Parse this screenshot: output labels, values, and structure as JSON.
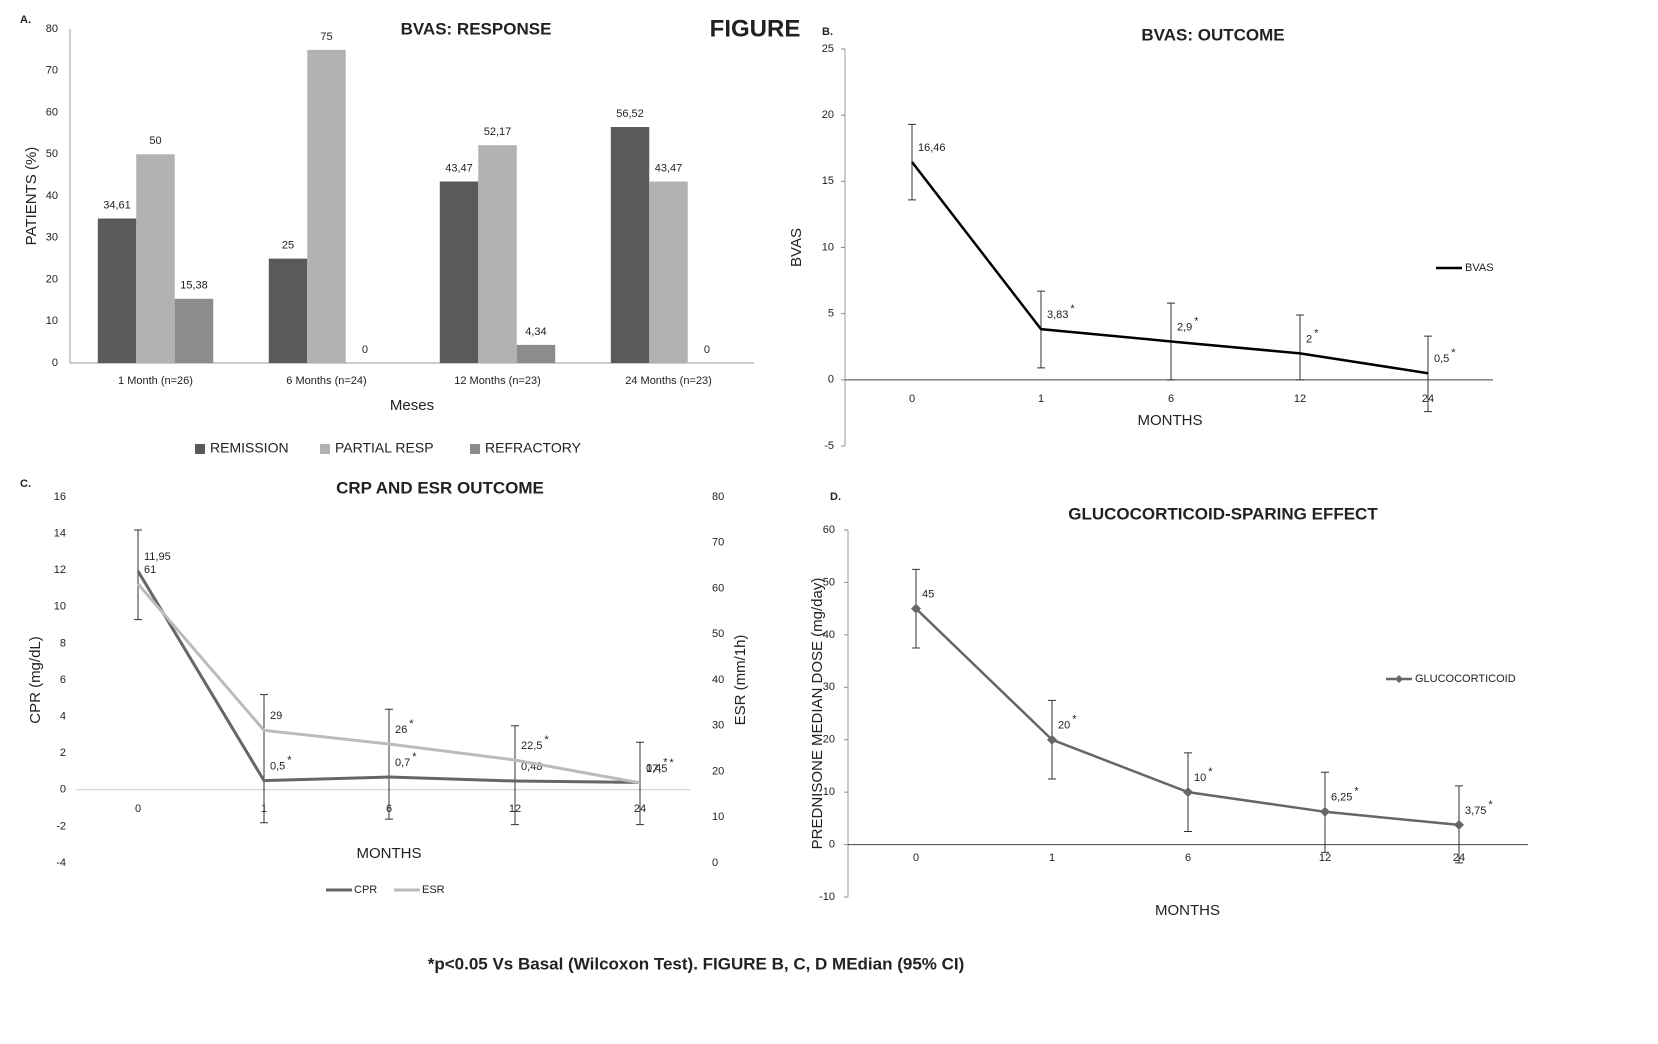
{
  "figure_title": "FIGURE",
  "footnote": "*p<0.05 Vs Basal (Wilcoxon Test). FIGURE B, C, D MEdian (95% CI)",
  "chart_data": [
    {
      "type": "bar",
      "panel": "A.",
      "title": "BVAS: RESPONSE",
      "x_label": "Meses",
      "y_label": "PATIENTS (%)",
      "categories": [
        "1 Month (n=26)",
        "6 Months (n=24)",
        "12 Months (n=23)",
        "24 Months (n=23)"
      ],
      "series": [
        {
          "name": "REMISSION",
          "color": "#5a5a5a",
          "values": [
            34.61,
            25,
            43.47,
            56.52
          ],
          "value_labels": [
            "34,61",
            "25",
            "43,47",
            "56,52"
          ]
        },
        {
          "name": "PARTIAL RESP",
          "color": "#b2b2b2",
          "values": [
            50,
            75,
            52.17,
            43.47
          ],
          "value_labels": [
            "50",
            "75",
            "52,17",
            "43,47"
          ]
        },
        {
          "name": "REFRACTORY",
          "color": "#8c8c8c",
          "values": [
            15.38,
            0,
            4.34,
            0
          ],
          "value_labels": [
            "15,38",
            "0",
            "4,34",
            "0"
          ]
        }
      ],
      "ylim": [
        0,
        80
      ],
      "yticks": [
        0,
        10,
        20,
        30,
        40,
        50,
        60,
        70,
        80
      ],
      "legend": "bottom"
    },
    {
      "type": "line",
      "panel": "B.",
      "title": "BVAS: OUTCOME",
      "x_label": "MONTHS",
      "y_label": "BVAS",
      "categories": [
        "0",
        "1",
        "6",
        "12",
        "24"
      ],
      "series": [
        {
          "name": "BVAS",
          "color": "#000000",
          "marker": "none",
          "values": [
            16.46,
            3.83,
            2.9,
            2,
            0.5
          ],
          "value_labels": [
            "16,46",
            "3,83",
            "2,9",
            "2",
            "0,5"
          ],
          "significance": [
            null,
            "*",
            "*",
            "*",
            "*"
          ],
          "error_low": [
            13.6,
            0.9,
            0,
            0,
            -2.4
          ],
          "error_high": [
            19.3,
            6.7,
            5.8,
            4.9,
            3.3
          ]
        }
      ],
      "ylim": [
        -5,
        25
      ],
      "yticks": [
        -5,
        0,
        5,
        10,
        15,
        20,
        25
      ],
      "legend": "right"
    },
    {
      "type": "line",
      "panel": "C.",
      "title": "CRP AND ESR OUTCOME",
      "x_label": "MONTHS",
      "y_label": "CPR (mg/dL)",
      "y2_label": "ESR (mm/1h)",
      "categories": [
        "0",
        "1",
        "6",
        "12",
        "24"
      ],
      "series": [
        {
          "name": "CPR",
          "color": "#666666",
          "marker": "none",
          "values": [
            11.95,
            0.5,
            0.7,
            0.48,
            0.4
          ],
          "value_labels": [
            "11,95",
            "0,5",
            "0,7",
            "0,48",
            "0,4"
          ],
          "significance": [
            null,
            "*",
            "*",
            null,
            "*"
          ],
          "error_low": [
            9.3,
            -1.8,
            -1.6,
            -1.9,
            -1.9
          ],
          "error_high": [
            14.2,
            5.2,
            4.4,
            3.5,
            2.6
          ]
        },
        {
          "name": "ESR",
          "color": "#bbbbbb",
          "marker": "none",
          "axis": "y2",
          "values": [
            61,
            29,
            26,
            22.5,
            17.5
          ],
          "value_labels": [
            "61",
            "29",
            "26",
            "22,5",
            "17,5"
          ],
          "significance": [
            null,
            null,
            "*",
            "*",
            "*"
          ]
        }
      ],
      "ylim": [
        -4,
        16
      ],
      "yticks": [
        -4,
        -2,
        0,
        2,
        4,
        6,
        8,
        10,
        12,
        14,
        16
      ],
      "y2lim": [
        0,
        80
      ],
      "y2ticks": [
        0,
        10,
        20,
        30,
        40,
        50,
        60,
        70,
        80
      ],
      "legend": "bottom"
    },
    {
      "type": "line",
      "panel": "D.",
      "title": "GLUCOCORTICOID-SPARING EFFECT",
      "x_label": "MONTHS",
      "y_label": "PREDNISONE MEDIAN DOSE (mg/day)",
      "categories": [
        "0",
        "1",
        "6",
        "12",
        "24"
      ],
      "series": [
        {
          "name": "GLUCOCORTICOID",
          "color": "#666666",
          "marker": "diamond",
          "values": [
            45,
            20,
            10,
            6.25,
            3.75
          ],
          "value_labels": [
            "45",
            "20",
            "10",
            "6,25",
            "3,75"
          ],
          "significance": [
            null,
            "*",
            "*",
            "*",
            "*"
          ],
          "error_low": [
            37.5,
            12.5,
            2.5,
            -1.5,
            -3.5
          ],
          "error_high": [
            52.5,
            27.5,
            17.5,
            13.8,
            11.2
          ]
        }
      ],
      "ylim": [
        -10,
        60
      ],
      "yticks": [
        -10,
        0,
        10,
        20,
        30,
        40,
        50,
        60
      ],
      "legend": "right"
    }
  ]
}
